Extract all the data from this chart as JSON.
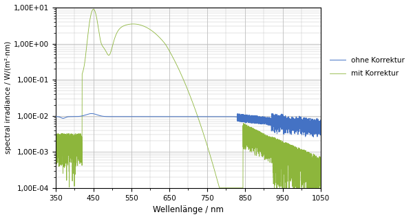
{
  "xlabel": "Wellenlänge / nm",
  "ylabel": "spectral irradiance / W/(m²·nm)",
  "xlim": [
    350,
    1050
  ],
  "ylim_log": [
    0.0001,
    10.0
  ],
  "color_ohne": "#4472C4",
  "color_mit": "#8DB63C",
  "legend_ohne": "ohne Korrektur",
  "legend_mit": "mit Korrektur",
  "background_color": "#FFFFFF",
  "grid_color": "#BEBEBE",
  "figsize": [
    6.0,
    3.19
  ],
  "dpi": 100,
  "x_ticks": [
    350,
    450,
    550,
    650,
    750,
    850,
    950,
    1050
  ],
  "y_ticks": [
    0.0001,
    0.001,
    0.01,
    0.1,
    1.0,
    10.0
  ],
  "y_tick_labels": [
    "1,00E-04",
    "1,00E-03",
    "1,00E-02",
    "1,00E-01",
    "1,00E+00",
    "1,00E+01"
  ]
}
